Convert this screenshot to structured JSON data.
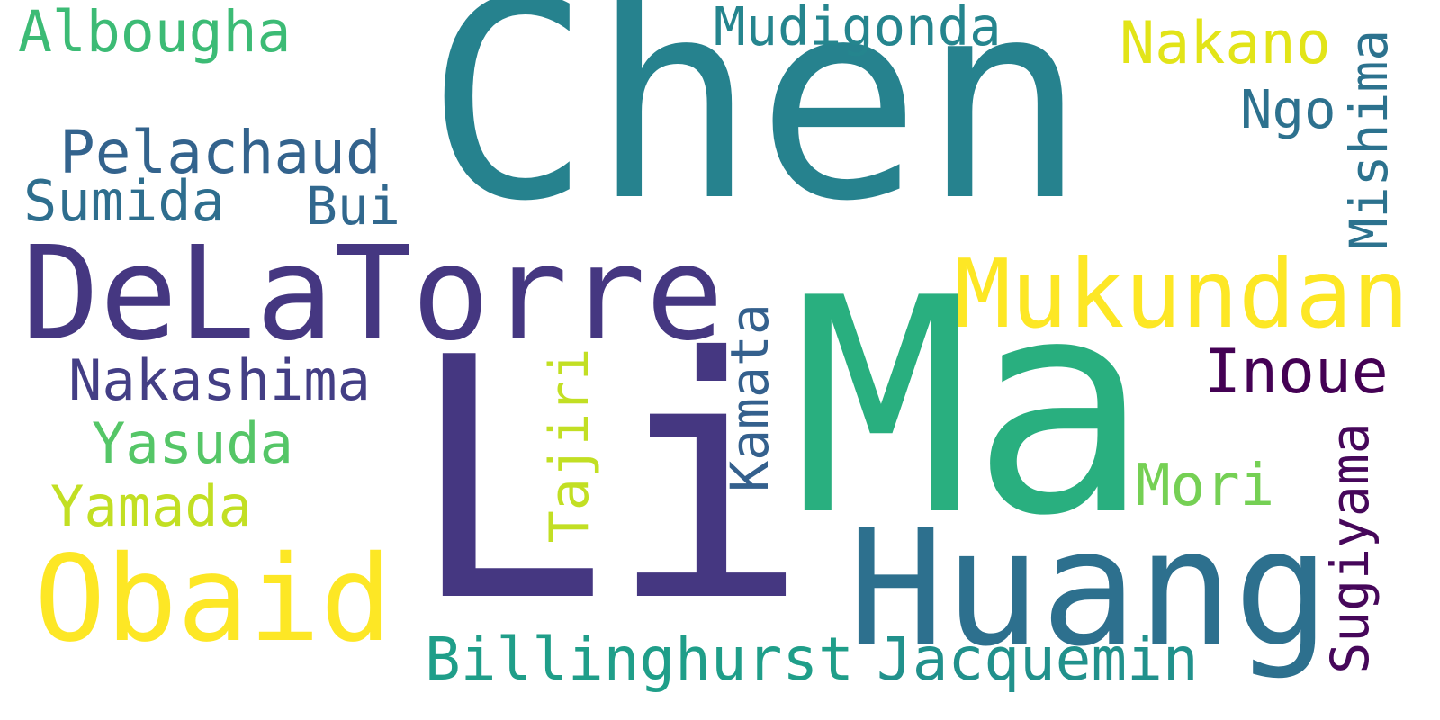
{
  "words": [
    {
      "key": "chen",
      "text": "Chen",
      "color": "#26828e"
    },
    {
      "key": "li",
      "text": "Li",
      "color": "#453781"
    },
    {
      "key": "ma",
      "text": "Ma",
      "color": "#29af7f"
    },
    {
      "key": "delatorre",
      "text": "DeLaTorre",
      "color": "#453781"
    },
    {
      "key": "huang",
      "text": "Huang",
      "color": "#2d708e"
    },
    {
      "key": "obaid",
      "text": "Obaid",
      "color": "#fde725"
    },
    {
      "key": "mukundan",
      "text": "Mukundan",
      "color": "#fde725"
    },
    {
      "key": "albougha",
      "text": "Albougha",
      "color": "#3cbb75"
    },
    {
      "key": "mudigonda",
      "text": "Mudigonda",
      "color": "#25858e"
    },
    {
      "key": "nakano",
      "text": "Nakano",
      "color": "#e2e418"
    },
    {
      "key": "ngo",
      "text": "Ngo",
      "color": "#2d718e"
    },
    {
      "key": "mishima",
      "text": "Mishima",
      "color": "#2c728e"
    },
    {
      "key": "pelachaud",
      "text": "Pelachaud",
      "color": "#33638d"
    },
    {
      "key": "sumida",
      "text": "Sumida",
      "color": "#2e6e8e"
    },
    {
      "key": "bui",
      "text": "Bui",
      "color": "#31688e"
    },
    {
      "key": "nakashima",
      "text": "Nakashima",
      "color": "#433e85"
    },
    {
      "key": "yasuda",
      "text": "Yasuda",
      "color": "#55c667"
    },
    {
      "key": "yamada",
      "text": "Yamada",
      "color": "#c2df23"
    },
    {
      "key": "tajiri",
      "text": "Tajiri",
      "color": "#c2df23"
    },
    {
      "key": "kamata",
      "text": "Kamata",
      "color": "#34608d"
    },
    {
      "key": "inoue",
      "text": "Inoue",
      "color": "#440154"
    },
    {
      "key": "mori",
      "text": "Mori",
      "color": "#75d054"
    },
    {
      "key": "sugiyama",
      "text": "Sugiyama",
      "color": "#46075a"
    },
    {
      "key": "billinghurst",
      "text": "Billinghurst",
      "color": "#1f9e89"
    },
    {
      "key": "jacquemin",
      "text": "Jacquemin",
      "color": "#21918c"
    }
  ]
}
